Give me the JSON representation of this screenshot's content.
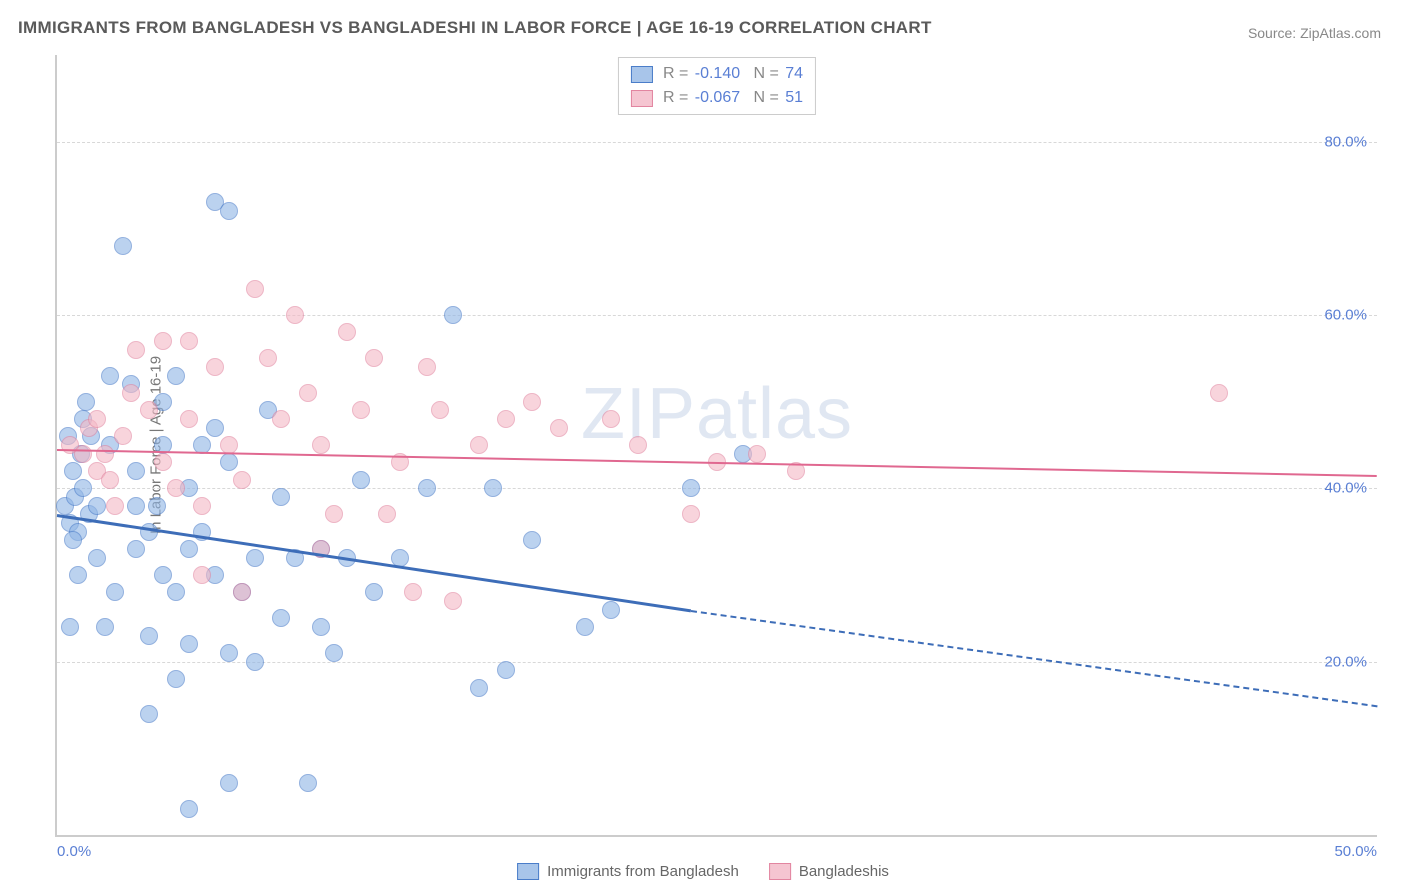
{
  "title": "IMMIGRANTS FROM BANGLADESH VS BANGLADESHI IN LABOR FORCE | AGE 16-19 CORRELATION CHART",
  "source": "Source: ZipAtlas.com",
  "watermark": "ZIPatlas",
  "y_axis_label": "In Labor Force | Age 16-19",
  "chart": {
    "type": "scatter",
    "xlim": [
      0,
      50
    ],
    "ylim": [
      0,
      90
    ],
    "x_ticks": [
      {
        "v": 0,
        "label": "0.0%"
      },
      {
        "v": 50,
        "label": "50.0%"
      }
    ],
    "y_ticks": [
      {
        "v": 20,
        "label": "20.0%"
      },
      {
        "v": 40,
        "label": "40.0%"
      },
      {
        "v": 60,
        "label": "60.0%"
      },
      {
        "v": 80,
        "label": "80.0%"
      }
    ],
    "grid_color": "#d8d8d8",
    "background_color": "#ffffff",
    "axis_label_color": "#5a7fd4",
    "point_radius": 8,
    "series": [
      {
        "name": "Immigrants from Bangladesh",
        "color_fill": "#8fb5e6",
        "color_stroke": "#4a7dc9",
        "R": "-0.140",
        "N": "74",
        "trend": {
          "x0": 0,
          "y0": 37,
          "x1": 24,
          "y1": 26,
          "x1_ext": 50,
          "y1_ext": 15,
          "color": "#3d6db8"
        },
        "points": [
          [
            0.3,
            38
          ],
          [
            0.5,
            36
          ],
          [
            0.7,
            39
          ],
          [
            0.8,
            35
          ],
          [
            1,
            40
          ],
          [
            0.6,
            42
          ],
          [
            1.2,
            37
          ],
          [
            1.5,
            38
          ],
          [
            0.8,
            30
          ],
          [
            1,
            48
          ],
          [
            1.3,
            46
          ],
          [
            0.5,
            24
          ],
          [
            1.8,
            24
          ],
          [
            2,
            53
          ],
          [
            2,
            45
          ],
          [
            2.5,
            68
          ],
          [
            2.8,
            52
          ],
          [
            3,
            42
          ],
          [
            3,
            33
          ],
          [
            3,
            38
          ],
          [
            3.5,
            35
          ],
          [
            3.5,
            23
          ],
          [
            3.5,
            14
          ],
          [
            4,
            50
          ],
          [
            4,
            45
          ],
          [
            4,
            30
          ],
          [
            4.5,
            53
          ],
          [
            4.5,
            28
          ],
          [
            4.5,
            18
          ],
          [
            5,
            40
          ],
          [
            5,
            33
          ],
          [
            5,
            22
          ],
          [
            5,
            3
          ],
          [
            5.5,
            45
          ],
          [
            5.5,
            35
          ],
          [
            6,
            73
          ],
          [
            6,
            47
          ],
          [
            6,
            30
          ],
          [
            6.5,
            72
          ],
          [
            6.5,
            43
          ],
          [
            6.5,
            21
          ],
          [
            6.5,
            6
          ],
          [
            7,
            28
          ],
          [
            7.5,
            32
          ],
          [
            7.5,
            20
          ],
          [
            8,
            49
          ],
          [
            8.5,
            39
          ],
          [
            8.5,
            25
          ],
          [
            9,
            32
          ],
          [
            9.5,
            6
          ],
          [
            10,
            33
          ],
          [
            10,
            24
          ],
          [
            10.5,
            21
          ],
          [
            11,
            32
          ],
          [
            11.5,
            41
          ],
          [
            12,
            28
          ],
          [
            13,
            32
          ],
          [
            14,
            40
          ],
          [
            15,
            60
          ],
          [
            16,
            17
          ],
          [
            16.5,
            40
          ],
          [
            17,
            19
          ],
          [
            18,
            34
          ],
          [
            20,
            24
          ],
          [
            21,
            26
          ],
          [
            24,
            40
          ],
          [
            26,
            44
          ],
          [
            1.5,
            32
          ],
          [
            2.2,
            28
          ],
          [
            0.9,
            44
          ],
          [
            1.1,
            50
          ],
          [
            3.8,
            38
          ],
          [
            0.4,
            46
          ],
          [
            0.6,
            34
          ]
        ]
      },
      {
        "name": "Bangladeshis",
        "color_fill": "#f4b8c5",
        "color_stroke": "#e285a0",
        "R": "-0.067",
        "N": "51",
        "trend": {
          "x0": 0,
          "y0": 44.5,
          "x1": 50,
          "y1": 41.5,
          "color": "#e06890"
        },
        "points": [
          [
            0.5,
            45
          ],
          [
            1,
            44
          ],
          [
            1.2,
            47
          ],
          [
            1.5,
            42
          ],
          [
            1.5,
            48
          ],
          [
            1.8,
            44
          ],
          [
            2,
            41
          ],
          [
            2.2,
            38
          ],
          [
            2.5,
            46
          ],
          [
            3,
            56
          ],
          [
            3.5,
            49
          ],
          [
            4,
            57
          ],
          [
            4,
            43
          ],
          [
            4.5,
            40
          ],
          [
            5,
            57
          ],
          [
            5,
            48
          ],
          [
            5.5,
            38
          ],
          [
            5.5,
            30
          ],
          [
            6,
            54
          ],
          [
            6.5,
            45
          ],
          [
            7,
            41
          ],
          [
            7,
            28
          ],
          [
            7.5,
            63
          ],
          [
            8,
            55
          ],
          [
            8.5,
            48
          ],
          [
            9,
            60
          ],
          [
            9.5,
            51
          ],
          [
            10,
            45
          ],
          [
            10,
            33
          ],
          [
            10.5,
            37
          ],
          [
            11,
            58
          ],
          [
            11.5,
            49
          ],
          [
            12,
            55
          ],
          [
            12.5,
            37
          ],
          [
            13,
            43
          ],
          [
            13.5,
            28
          ],
          [
            14,
            54
          ],
          [
            14.5,
            49
          ],
          [
            15,
            27
          ],
          [
            16,
            45
          ],
          [
            17,
            48
          ],
          [
            18,
            50
          ],
          [
            19,
            47
          ],
          [
            21,
            48
          ],
          [
            22,
            45
          ],
          [
            24,
            37
          ],
          [
            25,
            43
          ],
          [
            26.5,
            44
          ],
          [
            28,
            42
          ],
          [
            44,
            51
          ],
          [
            2.8,
            51
          ]
        ]
      }
    ]
  },
  "legend_bottom": [
    {
      "swatch": "blue",
      "label": "Immigrants from Bangladesh"
    },
    {
      "swatch": "pink",
      "label": "Bangladeshis"
    }
  ]
}
